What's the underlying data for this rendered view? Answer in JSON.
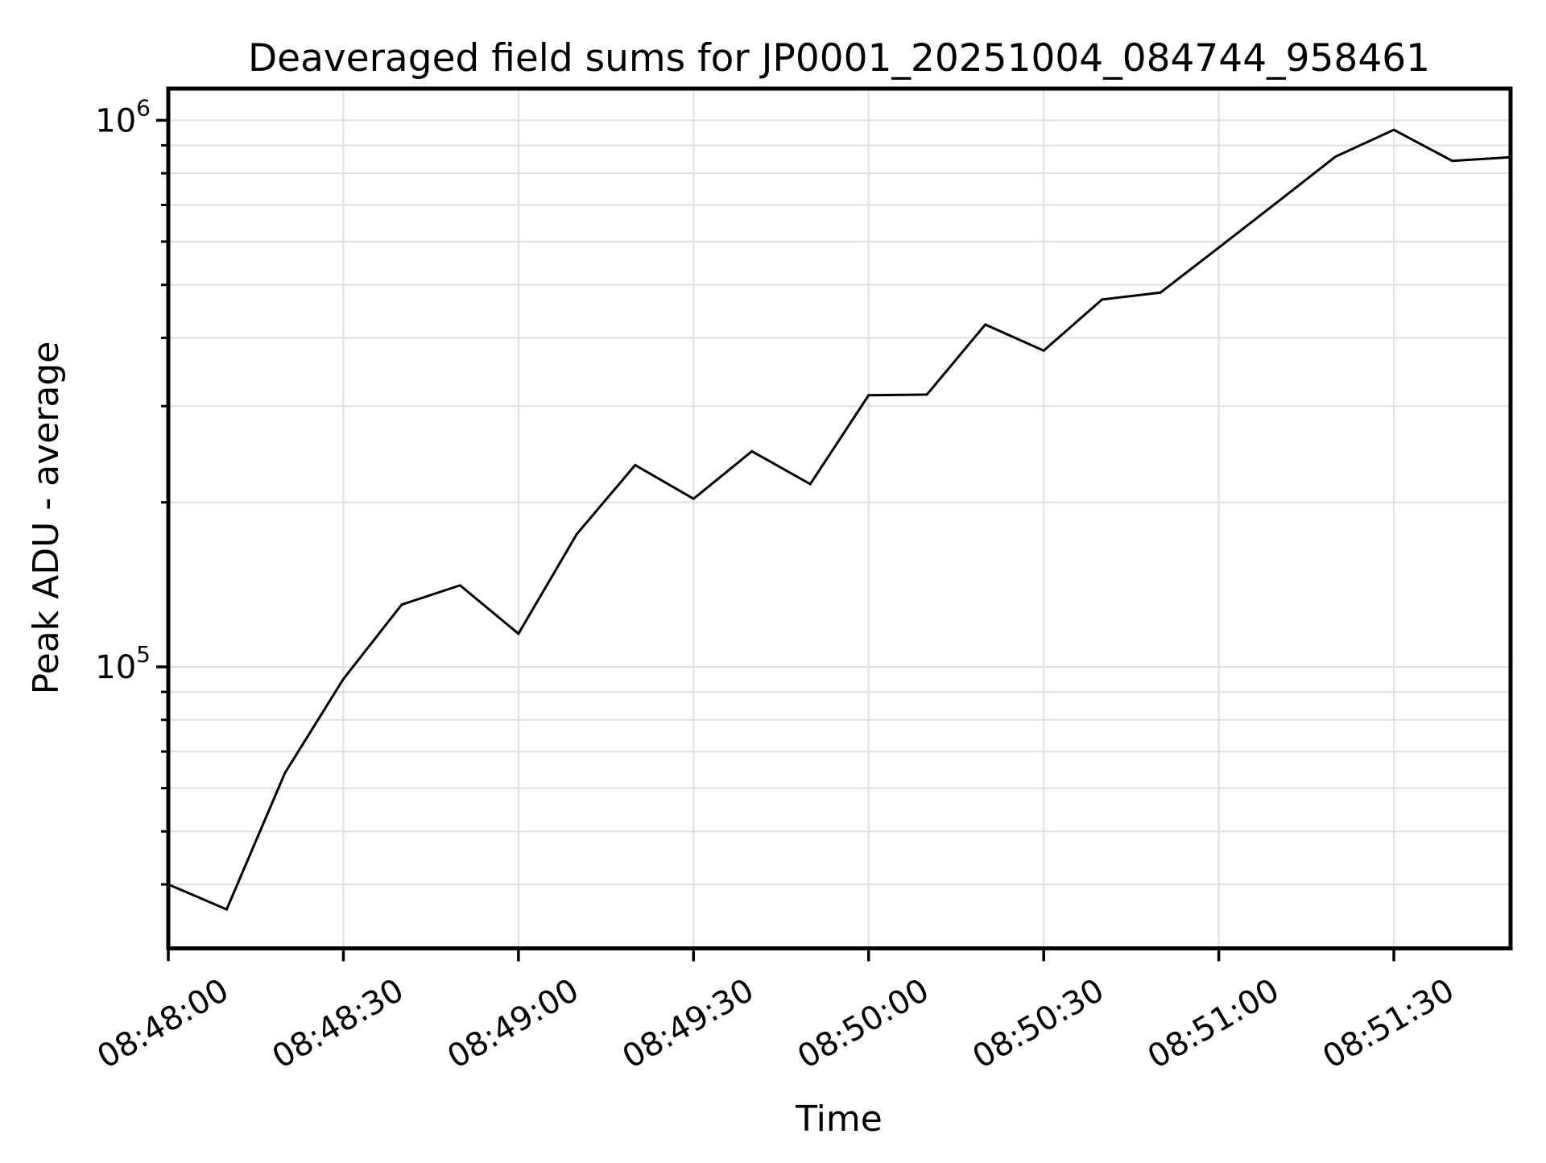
{
  "chart_data": {
    "type": "line",
    "title": "Deaveraged field sums for JP0001_20251004_084744_958461",
    "xlabel": "Time",
    "ylabel": "Peak ADU - average",
    "yscale": "log",
    "grid": true,
    "legend": null,
    "x": [
      "08:48:00",
      "08:48:10",
      "08:48:20",
      "08:48:30",
      "08:48:40",
      "08:48:50",
      "08:49:00",
      "08:49:10",
      "08:49:20",
      "08:49:30",
      "08:49:40",
      "08:49:50",
      "08:50:00",
      "08:50:10",
      "08:50:20",
      "08:50:30",
      "08:50:40",
      "08:50:50",
      "08:51:00",
      "08:51:10",
      "08:51:20",
      "08:51:30",
      "08:51:40",
      "08:51:50"
    ],
    "series": [
      {
        "name": "Peak ADU - average",
        "values": [
          40000,
          36000,
          64000,
          95000,
          130000,
          141000,
          115000,
          175000,
          234000,
          203000,
          248000,
          216000,
          314000,
          315000,
          423000,
          379000,
          470000,
          484000,
          585000,
          708000,
          858000,
          961000,
          843000,
          856000
        ]
      }
    ],
    "x_tick_labels": [
      "08:48:00",
      "08:48:30",
      "08:49:00",
      "08:49:30",
      "08:50:00",
      "08:50:30",
      "08:51:00",
      "08:51:30"
    ],
    "x_tick_every_n_points": 3,
    "x_tick_rotation_deg": 30,
    "y_major_ticks": [
      {
        "value": 100000,
        "mantissa": "10",
        "exponent": "5"
      },
      {
        "value": 1000000,
        "mantissa": "10",
        "exponent": "6"
      }
    ],
    "y_minor_ticks": [
      40000,
      50000,
      60000,
      70000,
      80000,
      90000,
      200000,
      300000,
      400000,
      500000,
      600000,
      700000,
      800000,
      900000
    ],
    "ylim": [
      30550,
      1143000
    ],
    "colors": {
      "line": "#000000",
      "grid": "#e0e0e0",
      "axis": "#000000",
      "text": "#000000",
      "background": "#ffffff"
    }
  }
}
